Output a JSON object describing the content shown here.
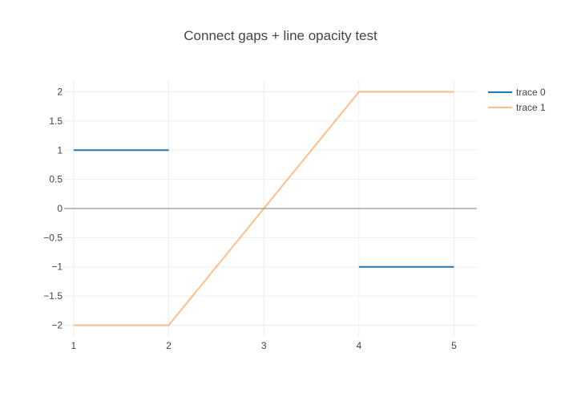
{
  "chart_data": {
    "type": "line",
    "title": "Connect gaps + line opacity test",
    "xlabel": "",
    "ylabel": "",
    "xlim": [
      0.9,
      5.24
    ],
    "ylim": [
      -2.2,
      2.2
    ],
    "xticks": [
      1,
      2,
      3,
      4,
      5
    ],
    "yticks": [
      2,
      1.5,
      1,
      0.5,
      0,
      -0.5,
      -1,
      -1.5,
      -2
    ],
    "xtick_labels": [
      "1",
      "2",
      "3",
      "4",
      "5"
    ],
    "ytick_labels": [
      "2",
      "1.5",
      "1",
      "0.5",
      "0",
      "−0.5",
      "−1",
      "−1.5",
      "−2"
    ],
    "grid": true,
    "zero_line": true,
    "legend_position": "top-right",
    "series": [
      {
        "name": "trace 0",
        "color": "#1f77b4",
        "opacity": 1,
        "connectgaps": false,
        "x": [
          1,
          2,
          3,
          4,
          5
        ],
        "y": [
          1,
          1,
          null,
          -1,
          -1
        ]
      },
      {
        "name": "trace 1",
        "color": "#ff7f0e",
        "opacity": 0.5,
        "connectgaps": true,
        "x": [
          1,
          2,
          3,
          4,
          5
        ],
        "y": [
          -2,
          -2,
          null,
          2,
          2
        ]
      }
    ]
  }
}
